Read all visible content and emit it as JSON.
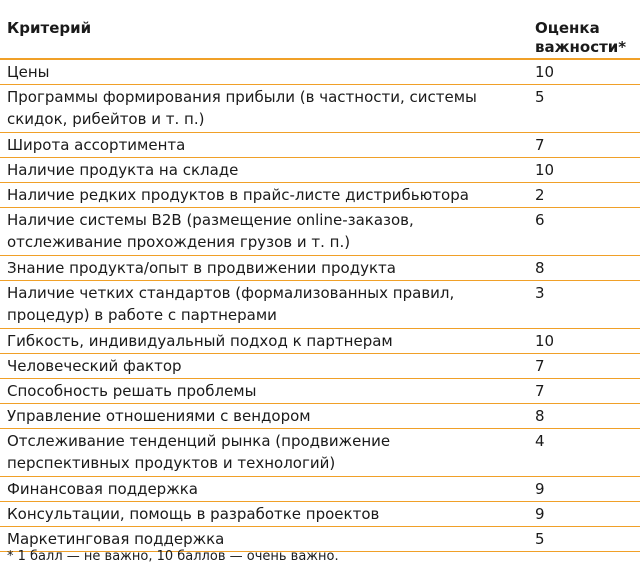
{
  "header": {
    "criterion": "Критерий",
    "score": "Оценка\nважности*"
  },
  "rows": [
    {
      "criterion": "Цены",
      "score": "10",
      "lines": 1
    },
    {
      "criterion": "Программы формирования прибыли (в частности, системы\nскидок, рибейтов и т. п.)",
      "score": "5",
      "lines": 2
    },
    {
      "criterion": "Широта ассортимента",
      "score": "7",
      "lines": 1
    },
    {
      "criterion": "Наличие продукта на складе",
      "score": "10",
      "lines": 1
    },
    {
      "criterion": "Наличие редких продуктов в прайс-листе дистрибьютора",
      "score": "2",
      "lines": 1
    },
    {
      "criterion": "Наличие системы B2B (размещение online-заказов,\nотслеживание прохождения грузов и т. п.)",
      "score": "6",
      "lines": 2
    },
    {
      "criterion": "Знание продукта/опыт в продвижении продукта",
      "score": "8",
      "lines": 1
    },
    {
      "criterion": "Наличие четких стандартов (формализованных правил,\nпроцедур) в работе с партнерами",
      "score": "3",
      "lines": 2
    },
    {
      "criterion": "Гибкость, индивидуальный подход к партнерам",
      "score": "10",
      "lines": 1
    },
    {
      "criterion": "Человеческий фактор",
      "score": "7",
      "lines": 1
    },
    {
      "criterion": "Способность решать проблемы",
      "score": "7",
      "lines": 1
    },
    {
      "criterion": "Управление отношениями с вендором",
      "score": "8",
      "lines": 1
    },
    {
      "criterion": "Отслеживание тенденций рынка (продвижение\nперспективных продуктов и технологий)",
      "score": "4",
      "lines": 2
    },
    {
      "criterion": "Финансовая поддержка",
      "score": "9",
      "lines": 1
    },
    {
      "criterion": "Консультации, помощь в разработке проектов",
      "score": "9",
      "lines": 1
    },
    {
      "criterion": "Маркетинговая поддержка",
      "score": "5",
      "lines": 1
    }
  ],
  "footnote": "* 1 балл — не важно, 10 баллов — очень важно.",
  "colors": {
    "rule": "#f0a028"
  }
}
